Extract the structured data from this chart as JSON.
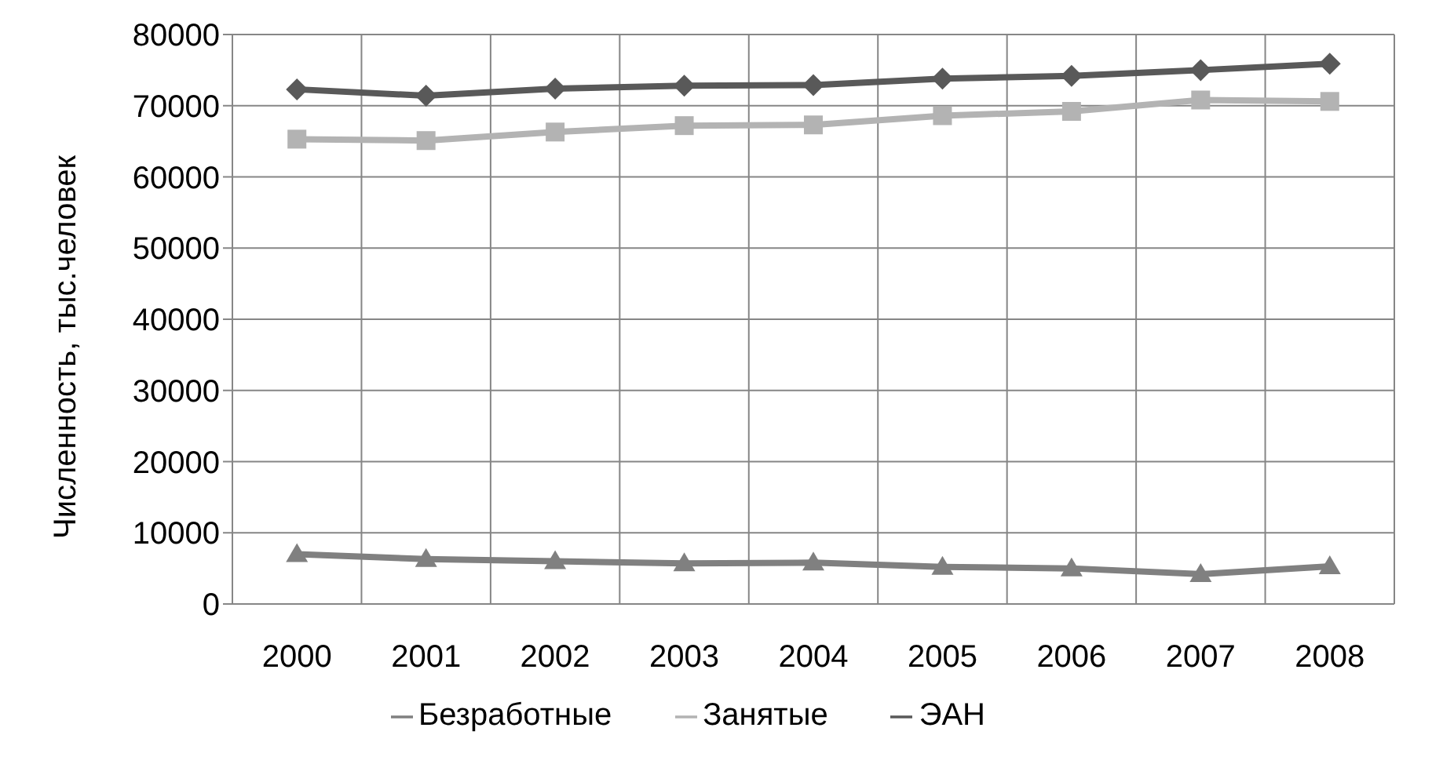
{
  "chart_data": {
    "type": "line",
    "ylabel": "Численность, тыс.человек",
    "categories": [
      "2000",
      "2001",
      "2002",
      "2003",
      "2004",
      "2005",
      "2006",
      "2007",
      "2008"
    ],
    "series": [
      {
        "name": "ЭАН",
        "color": "#595959",
        "marker": "diamond",
        "values": [
          72300,
          71400,
          72400,
          72800,
          72900,
          73800,
          74200,
          75000,
          75900
        ]
      },
      {
        "name": "Занятые",
        "color": "#b3b3b3",
        "marker": "square",
        "values": [
          65300,
          65100,
          66300,
          67200,
          67300,
          68600,
          69200,
          70800,
          70600
        ]
      },
      {
        "name": "Безработные",
        "color": "#808080",
        "marker": "triangle",
        "values": [
          7000,
          6300,
          6000,
          5700,
          5800,
          5200,
          5000,
          4200,
          5300
        ]
      }
    ],
    "ylim": [
      0,
      80000
    ],
    "yticks": [
      0,
      10000,
      20000,
      30000,
      40000,
      50000,
      60000,
      70000,
      80000
    ],
    "grid": true,
    "legend": "bottom"
  }
}
